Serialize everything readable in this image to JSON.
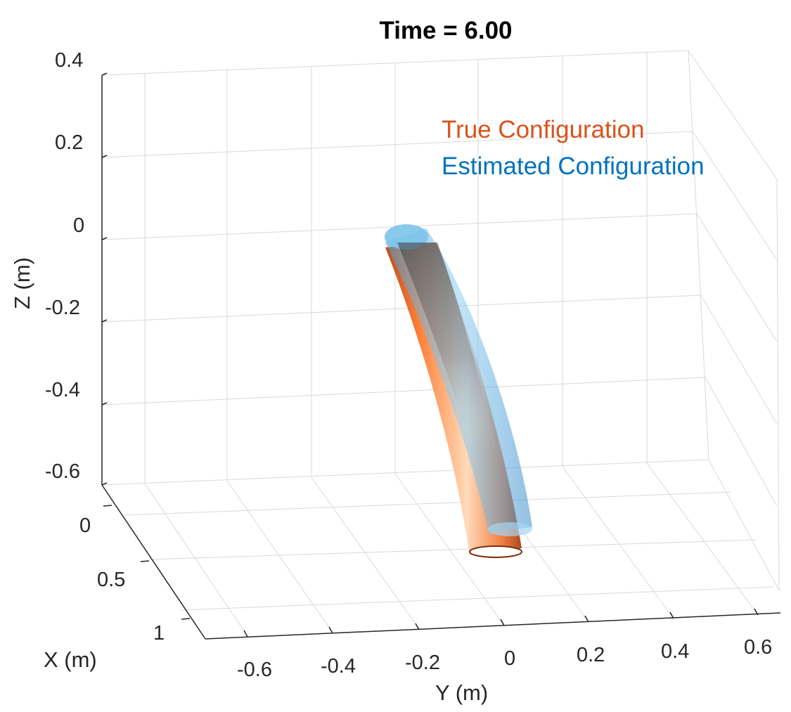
{
  "chart_data": {
    "type": "3d-surface",
    "title": "Time = 6.00",
    "xlabel": "X (m)",
    "ylabel": "Y (m)",
    "zlabel": "Z (m)",
    "grid": true,
    "legend_position": "top-right",
    "x_ticks": [
      0,
      0.5,
      1
    ],
    "y_ticks": [
      -0.6,
      -0.4,
      -0.2,
      0,
      0.2,
      0.4,
      0.6
    ],
    "z_ticks": [
      0.4,
      0.2,
      0,
      -0.2,
      -0.4,
      -0.6
    ],
    "x_tick_labels": [
      "0",
      "0.5",
      "1"
    ],
    "y_tick_labels": [
      "-0.6",
      "-0.4",
      "-0.2",
      "0",
      "0.2",
      "0.4",
      "0.6"
    ],
    "z_tick_labels": [
      "0.4",
      "0.2",
      "0",
      "-0.2",
      "-0.4",
      "-0.6"
    ],
    "series": [
      {
        "name": "True Configuration",
        "color": "#d95319"
      },
      {
        "name": "Estimated Configuration",
        "color": "#0072bd"
      }
    ]
  }
}
